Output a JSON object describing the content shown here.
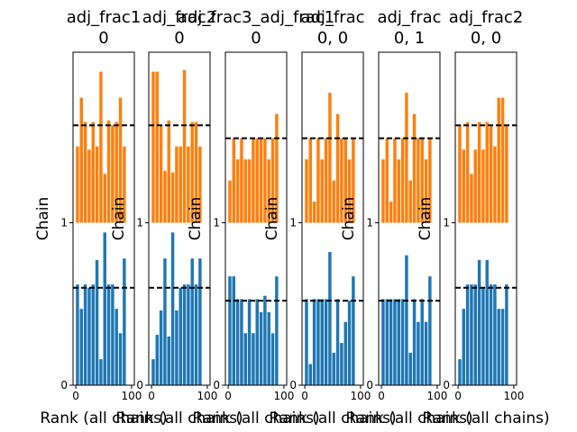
{
  "chart_data": {
    "type": "bar",
    "x_ticks": [
      0,
      100
    ],
    "y_ticks": [
      0,
      1
    ],
    "x_tick_labels": [
      "0",
      "100"
    ],
    "y_tick_labels": [
      "0",
      "1"
    ],
    "ylabel": "Chain",
    "xlabel": "Rank (all chains)",
    "xlim": [
      -5,
      105
    ],
    "ylim": [
      0,
      2.05
    ],
    "chains": [
      {
        "offset": 0,
        "color": "#1f77b4"
      },
      {
        "offset": 1,
        "color": "#ff7f0e"
      }
    ],
    "bar_centers": [
      3,
      10,
      17,
      24,
      31,
      38,
      45,
      52,
      59,
      66,
      73,
      80,
      87,
      94
    ],
    "bar_width": 5.6,
    "panels": [
      {
        "title": [
          "adj_frac1",
          "0"
        ],
        "ref": [
          0.6,
          0.6
        ],
        "chain_values": [
          [
            0.62,
            0.47,
            0.62,
            0.6,
            0.62,
            0.77,
            0.16,
            0.94,
            0.62,
            0.62,
            0.47,
            0.32,
            0.78,
            0
          ],
          [
            0.47,
            0.77,
            0.62,
            0.45,
            0.62,
            0.47,
            0.93,
            0.3,
            0.63,
            0.6,
            0.62,
            0.77,
            0.47,
            0
          ]
        ]
      },
      {
        "title": [
          "adj_frac2",
          "0"
        ],
        "ref": [
          0.6,
          0.6
        ],
        "chain_values": [
          [
            0.16,
            0.31,
            0.46,
            0.78,
            0.3,
            0.94,
            0.46,
            0.6,
            0.62,
            0.62,
            0.78,
            0.62,
            0.78,
            0
          ],
          [
            0.93,
            0.93,
            0.6,
            0.32,
            0.63,
            0.31,
            0.47,
            0.47,
            0.94,
            0.47,
            0.62,
            0.62,
            0.47,
            0
          ]
        ]
      },
      {
        "title": [
          "adj_frac3_adj_frac1",
          "0"
        ],
        "ref": [
          0.52,
          0.52
        ],
        "chain_values": [
          [
            0.67,
            0.67,
            0.53,
            0.53,
            0.32,
            0.53,
            0.32,
            0.53,
            0.45,
            0.55,
            0.45,
            0.32,
            0.67,
            0
          ],
          [
            0.26,
            0.52,
            0.39,
            0.52,
            0.39,
            0.39,
            0.52,
            0.52,
            0.52,
            0.52,
            0.39,
            0.52,
            0.67,
            0
          ]
        ]
      },
      {
        "title": [
          "adj_frac",
          "0, 0"
        ],
        "ref": [
          0.52,
          0.52
        ],
        "chain_values": [
          [
            0.53,
            0.13,
            0.53,
            0.53,
            0.53,
            0.53,
            0.82,
            0.2,
            0.53,
            0.26,
            0.39,
            0.52,
            0.67,
            0
          ],
          [
            0.39,
            0.52,
            0.13,
            0.52,
            0.39,
            0.52,
            0.8,
            0.26,
            0.67,
            0.52,
            0.52,
            0.39,
            0.52,
            0
          ]
        ]
      },
      {
        "title": [
          "adj_frac",
          "0, 1"
        ],
        "ref": [
          0.52,
          0.52
        ],
        "chain_values": [
          [
            0.53,
            0.53,
            0.53,
            0.53,
            0.53,
            0.53,
            0.8,
            0.2,
            0.53,
            0.39,
            0.53,
            0.39,
            0.67,
            0
          ],
          [
            0.39,
            0.52,
            0.13,
            0.52,
            0.39,
            0.52,
            0.8,
            0.26,
            0.67,
            0.52,
            0.52,
            0.39,
            0.52,
            0
          ]
        ]
      },
      {
        "title": [
          "adj_frac2",
          "0, 0"
        ],
        "ref": [
          0.6,
          0.6
        ],
        "chain_values": [
          [
            0.16,
            0.47,
            0.62,
            0.62,
            0.62,
            0.77,
            0.6,
            0.77,
            0.62,
            0.62,
            0.47,
            0.47,
            0.62,
            0
          ],
          [
            0.6,
            0.45,
            0.62,
            0.3,
            0.45,
            0.62,
            0.45,
            0.62,
            0.6,
            0.47,
            0.77,
            0.77,
            0.6,
            0
          ]
        ]
      }
    ]
  }
}
